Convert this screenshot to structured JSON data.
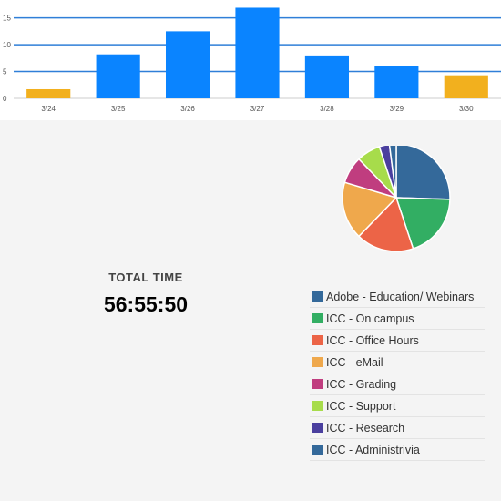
{
  "chart_data": [
    {
      "type": "bar",
      "categories": [
        "3/24",
        "3/25",
        "3/26",
        "3/27",
        "3/28",
        "3/29",
        "3/30"
      ],
      "values": [
        1.7,
        8.2,
        12.5,
        16.9,
        8.0,
        6.1,
        4.3
      ],
      "highlight": [
        true,
        false,
        false,
        false,
        false,
        false,
        true
      ],
      "y_ticks": [
        0,
        5,
        10,
        15
      ],
      "ylim": [
        0,
        18
      ],
      "grid": true,
      "colors": {
        "bar": "#0a84ff",
        "highlight": "#f2b01e",
        "grid": "#2f7fd8",
        "axis": "#cccccc"
      }
    },
    {
      "type": "pie",
      "slices": [
        {
          "label": "Adobe - Education/ Webinars",
          "value": 25,
          "color": "#34699a"
        },
        {
          "label": "ICC - On campus",
          "value": 19,
          "color": "#32ae63"
        },
        {
          "label": "ICC - Office Hours",
          "value": 17,
          "color": "#ec6447"
        },
        {
          "label": "ICC - eMail",
          "value": 17,
          "color": "#efa84c"
        },
        {
          "label": "ICC - Grading",
          "value": 8,
          "color": "#c03d7f"
        },
        {
          "label": "ICC - Support",
          "value": 7,
          "color": "#a7dc4b"
        },
        {
          "label": "ICC - Research",
          "value": 3,
          "color": "#4a3f9e"
        },
        {
          "label": "ICC - Administrivia",
          "value": 2,
          "color": "#34699a"
        }
      ]
    }
  ],
  "summary": {
    "label": "TOTAL TIME",
    "value": "56:55:50"
  }
}
